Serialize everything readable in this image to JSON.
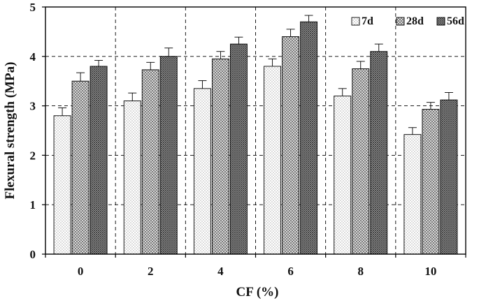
{
  "chart_data": {
    "type": "bar",
    "title": "",
    "xlabel": "CF (%)",
    "ylabel": "Flexural strength (MPa)",
    "categories": [
      "0",
      "2",
      "4",
      "6",
      "8",
      "10"
    ],
    "ylim": [
      0,
      5
    ],
    "yticks": [
      "0",
      "1",
      "2",
      "3",
      "4",
      "5"
    ],
    "grid": "dashed",
    "legend_position": "top-right",
    "series": [
      {
        "name": "7d",
        "values": [
          2.8,
          3.1,
          3.35,
          3.8,
          3.2,
          2.42
        ],
        "errors": [
          0.16,
          0.16,
          0.16,
          0.15,
          0.15,
          0.14
        ],
        "pattern": "fine-dots",
        "color": "#ffffff"
      },
      {
        "name": "28d",
        "values": [
          3.5,
          3.73,
          3.95,
          4.4,
          3.75,
          2.93
        ],
        "errors": [
          0.17,
          0.15,
          0.15,
          0.15,
          0.15,
          0.14
        ],
        "pattern": "crosshatch",
        "color": "#cfcfcf"
      },
      {
        "name": "56d",
        "values": [
          3.8,
          4.0,
          4.25,
          4.7,
          4.1,
          3.12
        ],
        "errors": [
          0.12,
          0.17,
          0.14,
          0.13,
          0.15,
          0.15
        ],
        "pattern": "dense-crosshatch",
        "color": "#9a9a9a"
      }
    ]
  }
}
